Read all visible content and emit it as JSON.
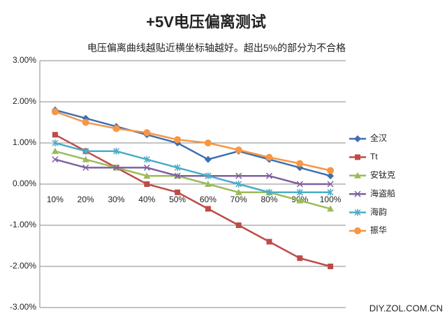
{
  "chart_data": {
    "type": "line",
    "title": "+5V电压偏离测试",
    "subtitle": "电压偏离曲线越贴近横坐标轴越好。超出5%的部分为不合格",
    "source": "DIY.ZOL.COM.CN",
    "categories": [
      "10%",
      "20%",
      "30%",
      "40%",
      "50%",
      "60%",
      "70%",
      "80%",
      "90%",
      "100%"
    ],
    "ylim": [
      -3,
      3
    ],
    "yticks": [
      {
        "value": 3,
        "label": "3.00%"
      },
      {
        "value": 2,
        "label": "2.00%"
      },
      {
        "value": 1,
        "label": "1.00%"
      },
      {
        "value": 0,
        "label": "0.00%"
      },
      {
        "value": -1,
        "label": "-1.00%"
      },
      {
        "value": -2,
        "label": "-2.00%"
      },
      {
        "value": -3,
        "label": "-3.00%"
      }
    ],
    "grid": true,
    "legend": "right",
    "series": [
      {
        "name": "全汉",
        "color": "#3e6fb0",
        "marker": "diamond",
        "values": [
          1.8,
          1.6,
          1.4,
          1.2,
          1.0,
          0.6,
          0.8,
          0.6,
          0.4,
          0.2
        ]
      },
      {
        "name": "Tt",
        "color": "#be4b48",
        "marker": "square",
        "values": [
          1.2,
          0.8,
          0.4,
          0,
          -0.2,
          -0.6,
          -1.0,
          -1.4,
          -1.8,
          -2.0
        ]
      },
      {
        "name": "安钛克",
        "color": "#9bbb59",
        "marker": "triangle",
        "values": [
          0.8,
          0.6,
          0.4,
          0.2,
          0.2,
          0,
          -0.2,
          -0.2,
          -0.4,
          -0.6
        ]
      },
      {
        "name": "海盗船",
        "color": "#7f60a0",
        "marker": "x",
        "values": [
          0.6,
          0.4,
          0.4,
          0.4,
          0.2,
          0.2,
          0.2,
          0.2,
          0,
          0
        ]
      },
      {
        "name": "海韵",
        "color": "#4bacc6",
        "marker": "star",
        "values": [
          1.0,
          0.8,
          0.8,
          0.6,
          0.4,
          0.2,
          0,
          -0.2,
          -0.2,
          -0.2
        ]
      },
      {
        "name": "振华",
        "color": "#f79646",
        "marker": "circle",
        "values": [
          1.76,
          1.5,
          1.35,
          1.25,
          1.08,
          1.0,
          0.83,
          0.65,
          0.5,
          0.33
        ]
      }
    ]
  }
}
